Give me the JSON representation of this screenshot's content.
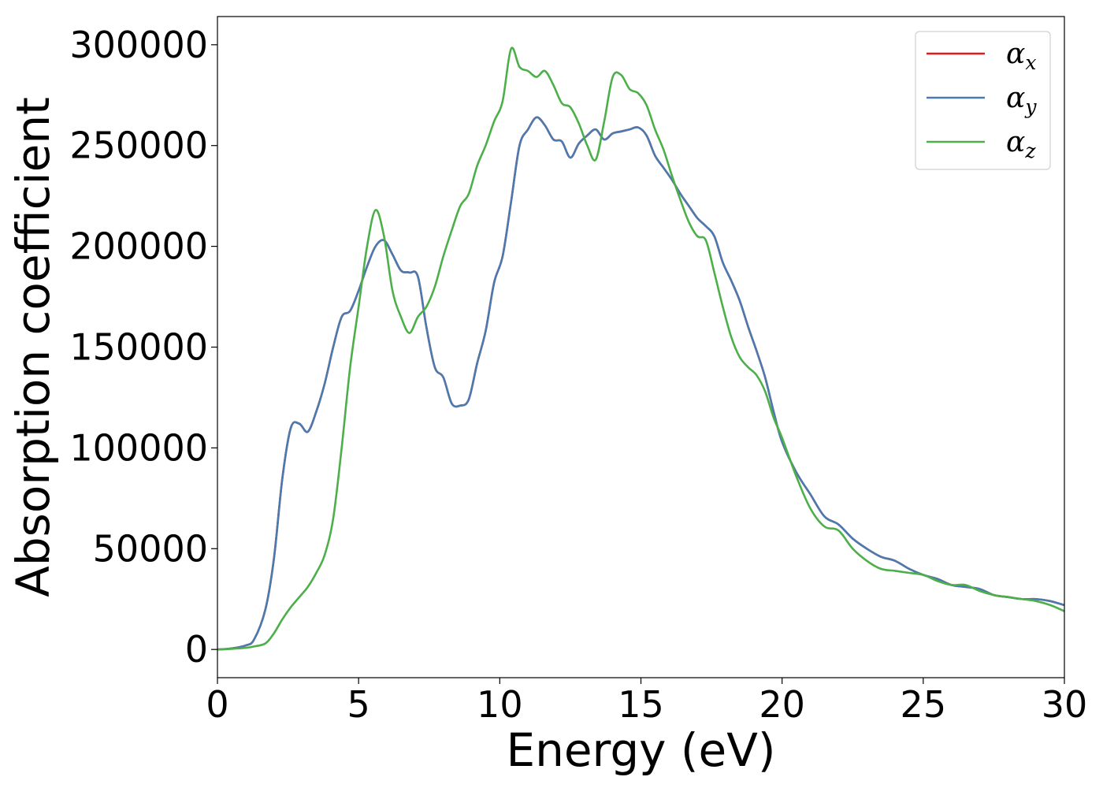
{
  "chart_data": {
    "type": "line",
    "title": "",
    "xlabel": "Energy (eV)",
    "ylabel": "Absorption coefficient",
    "xlim": [
      0,
      30
    ],
    "ylim": [
      -14000,
      314000
    ],
    "xticks": [
      0,
      5,
      10,
      15,
      20,
      25,
      30
    ],
    "yticks": [
      0,
      50000,
      100000,
      150000,
      200000,
      250000,
      300000
    ],
    "grid": false,
    "legend_position": "top-right",
    "x": [
      0,
      0.5,
      1,
      1.3,
      1.7,
      2,
      2.3,
      2.6,
      2.9,
      3.2,
      3.5,
      3.8,
      4.1,
      4.4,
      4.7,
      5,
      5.3,
      5.6,
      5.9,
      6.2,
      6.5,
      6.8,
      7.1,
      7.4,
      7.7,
      8,
      8.3,
      8.6,
      8.9,
      9.2,
      9.5,
      9.8,
      10.1,
      10.4,
      10.7,
      11,
      11.3,
      11.6,
      11.9,
      12.2,
      12.5,
      12.8,
      13.1,
      13.4,
      13.7,
      14,
      14.3,
      14.6,
      14.9,
      15.2,
      15.5,
      15.8,
      16.1,
      16.4,
      16.7,
      17,
      17.3,
      17.6,
      17.9,
      18.2,
      18.5,
      18.8,
      19.1,
      19.4,
      19.7,
      20,
      20.5,
      21,
      21.5,
      22,
      22.5,
      23,
      23.5,
      24,
      24.5,
      25,
      25.5,
      26,
      26.5,
      27,
      27.5,
      28,
      28.5,
      29,
      29.5,
      30
    ],
    "series": [
      {
        "name": "α_x",
        "color": "#e41a1c",
        "values": [
          0,
          500,
          2000,
          5000,
          20000,
          45000,
          85000,
          110000,
          112000,
          108000,
          118000,
          132000,
          150000,
          165000,
          168000,
          178000,
          190000,
          200000,
          203000,
          196000,
          188000,
          187000,
          185000,
          160000,
          140000,
          135000,
          122000,
          121000,
          124000,
          142000,
          158000,
          182000,
          195000,
          222000,
          250000,
          258000,
          264000,
          260000,
          253000,
          252000,
          244000,
          251000,
          255000,
          258000,
          253000,
          256000,
          257000,
          258000,
          259000,
          255000,
          245000,
          239000,
          233000,
          226000,
          220000,
          214000,
          210000,
          205000,
          192000,
          183000,
          173000,
          160000,
          148000,
          135000,
          118000,
          103000,
          88000,
          77000,
          66000,
          62000,
          55000,
          50000,
          46000,
          44000,
          40000,
          37000,
          35000,
          32000,
          31000,
          30000,
          27000,
          26000,
          25000,
          25000,
          24000,
          22000
        ]
      },
      {
        "name": "α_y",
        "color": "#4a7bb0",
        "values": [
          0,
          500,
          2000,
          5000,
          20000,
          45000,
          85000,
          110000,
          112000,
          108000,
          118000,
          132000,
          150000,
          165000,
          168000,
          178000,
          190000,
          200000,
          203000,
          196000,
          188000,
          187000,
          185000,
          160000,
          140000,
          135000,
          122000,
          121000,
          124000,
          142000,
          158000,
          182000,
          195000,
          222000,
          250000,
          258000,
          264000,
          260000,
          253000,
          252000,
          244000,
          251000,
          255000,
          258000,
          253000,
          256000,
          257000,
          258000,
          259000,
          255000,
          245000,
          239000,
          233000,
          226000,
          220000,
          214000,
          210000,
          205000,
          192000,
          183000,
          173000,
          160000,
          148000,
          135000,
          118000,
          103000,
          88000,
          77000,
          66000,
          62000,
          55000,
          50000,
          46000,
          44000,
          40000,
          37000,
          35000,
          32000,
          31000,
          30000,
          27000,
          26000,
          25000,
          25000,
          24000,
          22000
        ]
      },
      {
        "name": "α_z",
        "color": "#4daf4a",
        "values": [
          0,
          300,
          800,
          1500,
          3000,
          8000,
          15000,
          21000,
          26000,
          31000,
          38000,
          47000,
          65000,
          100000,
          140000,
          170000,
          200000,
          218000,
          205000,
          178000,
          165000,
          157000,
          165000,
          170000,
          180000,
          195000,
          208000,
          220000,
          226000,
          240000,
          250000,
          262000,
          272000,
          298000,
          289000,
          287000,
          284000,
          287000,
          280000,
          271000,
          269000,
          261000,
          250000,
          243000,
          262000,
          284000,
          285000,
          278000,
          276000,
          270000,
          258000,
          248000,
          235000,
          223000,
          212000,
          205000,
          203000,
          187000,
          170000,
          155000,
          145000,
          140000,
          136000,
          128000,
          115000,
          105000,
          86000,
          70000,
          61000,
          59000,
          50000,
          44000,
          40000,
          39000,
          38000,
          37000,
          34000,
          32000,
          32000,
          29000,
          27000,
          26000,
          25000,
          24000,
          22000,
          19000
        ]
      }
    ]
  }
}
